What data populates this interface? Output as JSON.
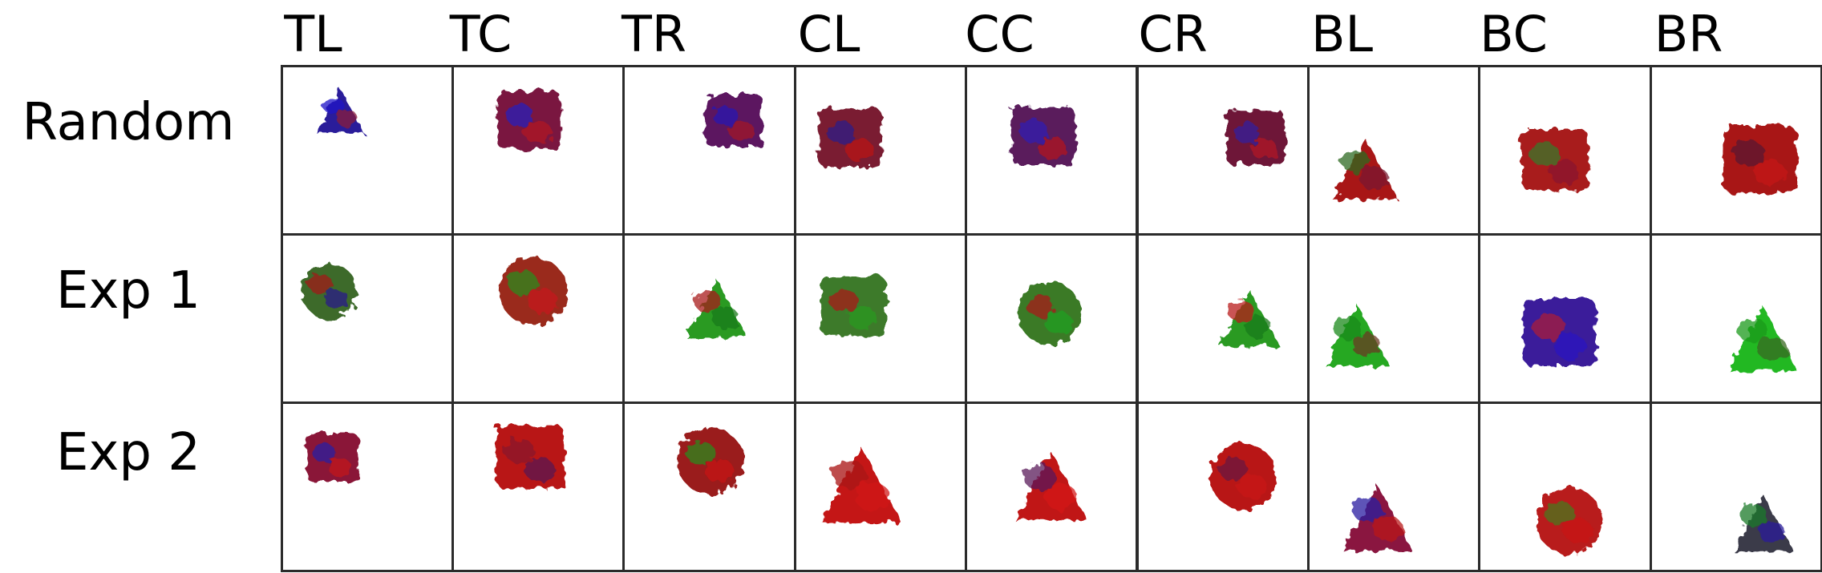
{
  "columns": [
    "TL",
    "TC",
    "TR",
    "CL",
    "CC",
    "CR",
    "BL",
    "BC",
    "BR"
  ],
  "rows": [
    {
      "label": "Random",
      "cells": [
        {
          "shape": "triangle",
          "fill": "#2a1c9a",
          "accents": [
            "#1d10c6",
            "#8a1a3a"
          ]
        },
        {
          "shape": "square",
          "fill": "#7a1840",
          "accents": [
            "#2a20b8",
            "#b01622"
          ]
        },
        {
          "shape": "square",
          "fill": "#5c1860",
          "accents": [
            "#2a1ab0",
            "#a01828"
          ]
        },
        {
          "shape": "square",
          "fill": "#7a1a30",
          "accents": [
            "#2c1c88",
            "#b81818"
          ]
        },
        {
          "shape": "square",
          "fill": "#5a1a5c",
          "accents": [
            "#3020b0",
            "#b01820"
          ]
        },
        {
          "shape": "square",
          "fill": "#6e1838",
          "accents": [
            "#34209c",
            "#b01824"
          ]
        },
        {
          "shape": "triangle",
          "fill": "#a81818",
          "accents": [
            "#2e6a20",
            "#7a1830"
          ]
        },
        {
          "shape": "square",
          "fill": "#a81a1c",
          "accents": [
            "#3a7a2a",
            "#8a1830"
          ]
        },
        {
          "shape": "square",
          "fill": "#a81818",
          "accents": [
            "#5a1830",
            "#c41a1a"
          ]
        }
      ]
    },
    {
      "label": "Exp 1",
      "cells": [
        {
          "shape": "circle",
          "fill": "#3c6a2a",
          "accents": [
            "#a01a1a",
            "#2a1c8a"
          ]
        },
        {
          "shape": "circle",
          "fill": "#9a2a1c",
          "accents": [
            "#2a8a20",
            "#c41a1a"
          ]
        },
        {
          "shape": "triangle",
          "fill": "#2a9a22",
          "accents": [
            "#a81a1a",
            "#1a7a18"
          ]
        },
        {
          "shape": "square",
          "fill": "#3e7a2a",
          "accents": [
            "#a81a1a",
            "#2a9a22"
          ]
        },
        {
          "shape": "circle",
          "fill": "#3a7a26",
          "accents": [
            "#a81a1a",
            "#22a020"
          ]
        },
        {
          "shape": "triangle",
          "fill": "#2a9a22",
          "accents": [
            "#b81a1a",
            "#1a7a18"
          ]
        },
        {
          "shape": "triangle",
          "fill": "#28a824",
          "accents": [
            "#1a8a1a",
            "#6a3a20"
          ]
        },
        {
          "shape": "square",
          "fill": "#3a1c9a",
          "accents": [
            "#a81a3a",
            "#2a14c0"
          ]
        },
        {
          "shape": "triangle",
          "fill": "#22b820",
          "accents": [
            "#1a9a1a",
            "#3a6a22"
          ]
        }
      ]
    },
    {
      "label": "Exp 2",
      "cells": [
        {
          "shape": "square",
          "fill": "#8a1838",
          "accents": [
            "#2a1ca0",
            "#c01a1a"
          ]
        },
        {
          "shape": "square",
          "fill": "#b81818",
          "accents": [
            "#8a1a2a",
            "#5a1a50"
          ]
        },
        {
          "shape": "circle",
          "fill": "#9a1a1a",
          "accents": [
            "#2a8a20",
            "#c41a1a"
          ]
        },
        {
          "shape": "triangle",
          "fill": "#c41818",
          "accents": [
            "#a81414",
            "#d01a1a"
          ]
        },
        {
          "shape": "triangle",
          "fill": "#c01818",
          "accents": [
            "#5a1a5a",
            "#d41a1a"
          ]
        },
        {
          "shape": "circle",
          "fill": "#b81818",
          "accents": [
            "#6a1a40",
            "#c81a1a"
          ]
        },
        {
          "shape": "triangle",
          "fill": "#8a1840",
          "accents": [
            "#2a1ca0",
            "#b81a1a"
          ]
        },
        {
          "shape": "circle",
          "fill": "#b81a1a",
          "accents": [
            "#4a7a22",
            "#c81a1a"
          ]
        },
        {
          "shape": "triangle",
          "fill": "#3a3a4a",
          "accents": [
            "#1a7a2a",
            "#2a1c9a"
          ]
        }
      ]
    }
  ]
}
